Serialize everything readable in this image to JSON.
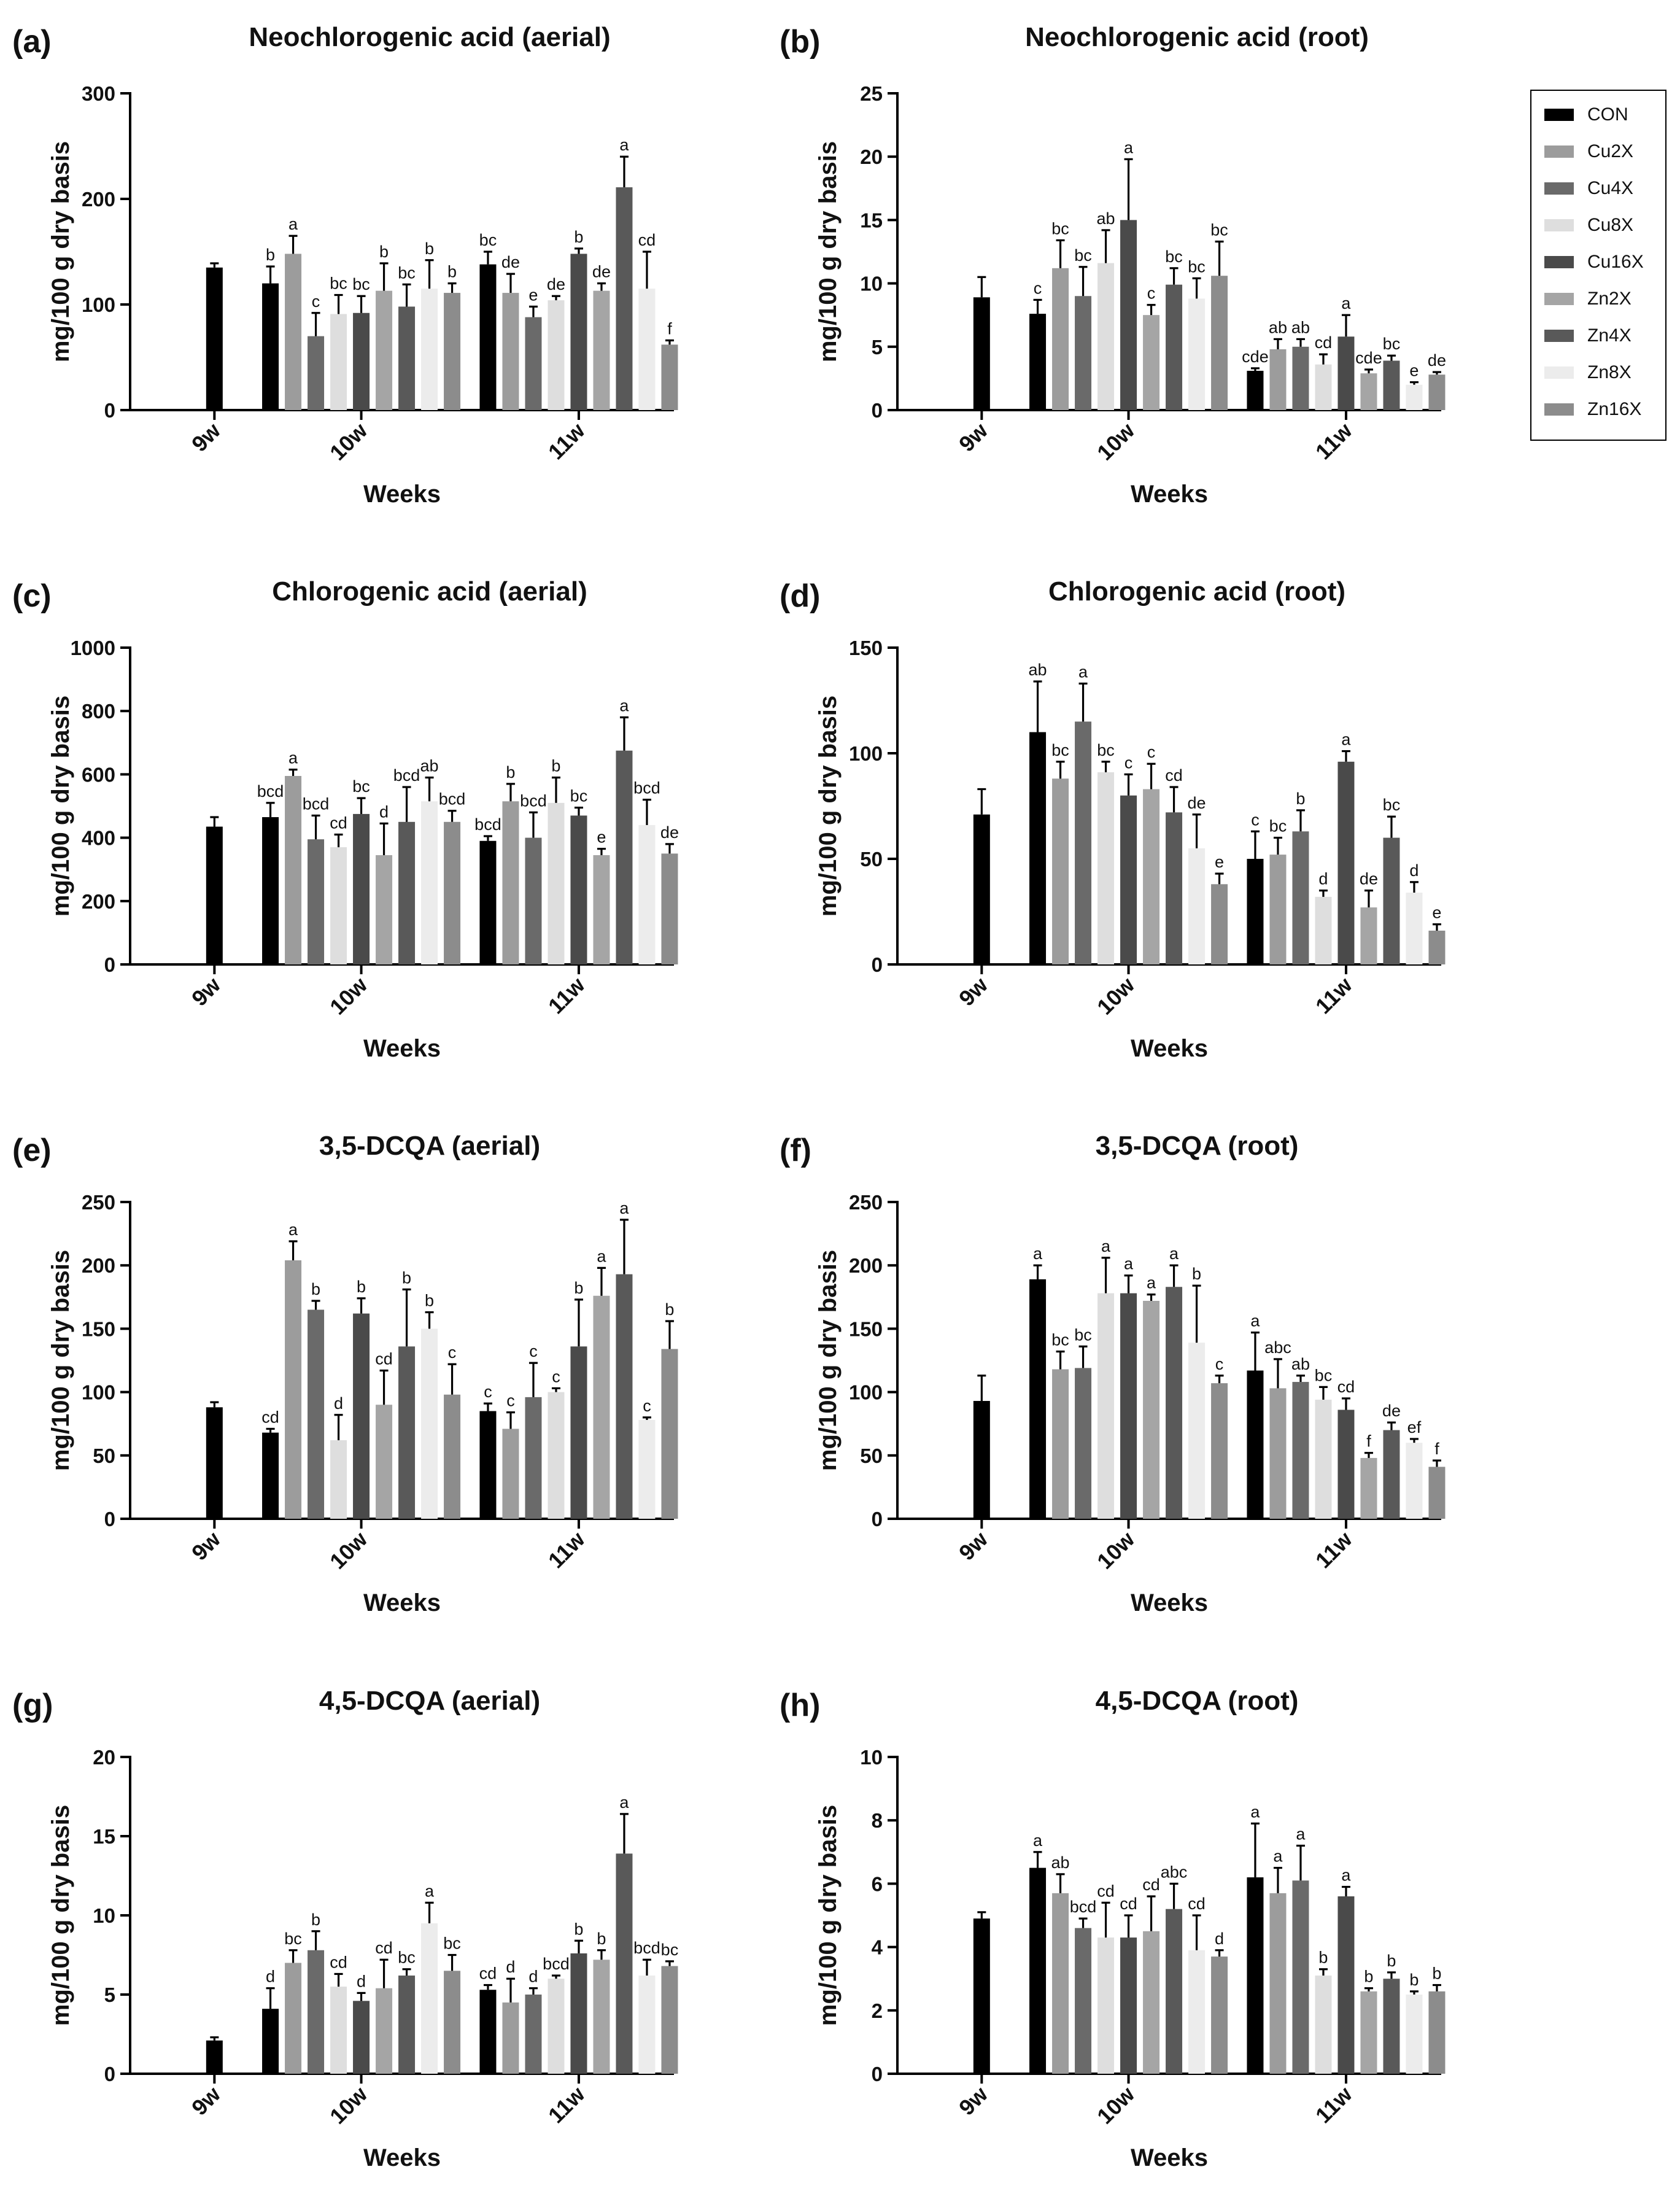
{
  "chart_data": [
    {
      "panel": "(a)",
      "type": "bar",
      "title": "Neochlorogenic acid (aerial)",
      "xlabel": "Weeks",
      "ylabel": "mg/100 g dry basis",
      "ylim": [
        0,
        300
      ],
      "yticks": [
        0,
        100,
        200,
        300
      ],
      "categories": [
        "9w",
        "10w",
        "11w"
      ],
      "groups": [
        {
          "category": "9w",
          "values": [
            135
          ],
          "errors": [
            4
          ],
          "labels": [
            ""
          ]
        },
        {
          "category": "10w",
          "values": [
            120,
            148,
            70,
            91,
            92,
            113,
            98,
            115,
            111
          ],
          "errors": [
            16,
            17,
            22,
            18,
            16,
            26,
            21,
            27,
            9
          ],
          "labels": [
            "b",
            "a",
            "c",
            "bc",
            "bc",
            "b",
            "bc",
            "b",
            "b"
          ]
        },
        {
          "category": "11w",
          "values": [
            138,
            111,
            88,
            104,
            148,
            113,
            211,
            115,
            62
          ],
          "errors": [
            12,
            18,
            10,
            4,
            5,
            7,
            29,
            35,
            4
          ],
          "labels": [
            "bc",
            "de",
            "e",
            "de",
            "b",
            "de",
            "a",
            "cd",
            "f"
          ]
        }
      ]
    },
    {
      "panel": "(b)",
      "type": "bar",
      "title": "Neochlorogenic acid (root)",
      "xlabel": "Weeks",
      "ylabel": "mg/100 g dry basis",
      "ylim": [
        0,
        25
      ],
      "yticks": [
        0,
        5,
        10,
        15,
        20,
        25
      ],
      "categories": [
        "9w",
        "10w",
        "11w"
      ],
      "groups": [
        {
          "category": "9w",
          "values": [
            8.9
          ],
          "errors": [
            1.6
          ],
          "labels": [
            ""
          ]
        },
        {
          "category": "10w",
          "values": [
            7.6,
            11.2,
            9.0,
            11.6,
            15.0,
            7.5,
            9.9,
            8.8,
            10.6
          ],
          "errors": [
            1.1,
            2.2,
            2.3,
            2.6,
            4.8,
            0.8,
            1.3,
            1.6,
            2.7
          ],
          "labels": [
            "c",
            "bc",
            "bc",
            "ab",
            "a",
            "c",
            "bc",
            "bc",
            "bc"
          ]
        },
        {
          "category": "11w",
          "values": [
            3.1,
            4.8,
            5.0,
            3.6,
            5.8,
            2.9,
            3.9,
            2.0,
            2.8
          ],
          "errors": [
            0.2,
            0.8,
            0.6,
            0.8,
            1.7,
            0.3,
            0.4,
            0.2,
            0.2
          ],
          "labels": [
            "cde",
            "ab",
            "ab",
            "cd",
            "a",
            "cde",
            "bc",
            "e",
            "de"
          ]
        }
      ]
    },
    {
      "panel": "(c)",
      "type": "bar",
      "title": "Chlorogenic acid (aerial)",
      "xlabel": "Weeks",
      "ylabel": "mg/100 g dry basis",
      "ylim": [
        0,
        1000
      ],
      "yticks": [
        0,
        200,
        400,
        600,
        800,
        1000
      ],
      "categories": [
        "9w",
        "10w",
        "11w"
      ],
      "groups": [
        {
          "category": "9w",
          "values": [
            435
          ],
          "errors": [
            30
          ],
          "labels": [
            ""
          ]
        },
        {
          "category": "10w",
          "values": [
            465,
            595,
            395,
            370,
            475,
            345,
            450,
            515,
            450
          ],
          "errors": [
            45,
            20,
            75,
            40,
            50,
            100,
            110,
            75,
            35
          ],
          "labels": [
            "bcd",
            "a",
            "bcd",
            "cd",
            "bc",
            "d",
            "bcd",
            "ab",
            "bcd"
          ]
        },
        {
          "category": "11w",
          "values": [
            390,
            515,
            400,
            510,
            470,
            345,
            675,
            440,
            350
          ],
          "errors": [
            15,
            55,
            80,
            80,
            25,
            20,
            105,
            80,
            30
          ],
          "labels": [
            "bcd",
            "b",
            "bcd",
            "b",
            "bc",
            "e",
            "a",
            "bcd",
            "de"
          ]
        }
      ]
    },
    {
      "panel": "(d)",
      "type": "bar",
      "title": "Chlorogenic acid (root)",
      "xlabel": "Weeks",
      "ylabel": "mg/100 g dry basis",
      "ylim": [
        0,
        150
      ],
      "yticks": [
        0,
        50,
        100,
        150
      ],
      "categories": [
        "9w",
        "10w",
        "11w"
      ],
      "groups": [
        {
          "category": "9w",
          "values": [
            71
          ],
          "errors": [
            12
          ],
          "labels": [
            ""
          ]
        },
        {
          "category": "10w",
          "values": [
            110,
            88,
            115,
            91,
            80,
            83,
            72,
            55,
            38
          ],
          "errors": [
            24,
            8,
            18,
            5,
            10,
            12,
            12,
            16,
            5
          ],
          "labels": [
            "ab",
            "bc",
            "a",
            "bc",
            "c",
            "c",
            "cd",
            "de",
            "e"
          ]
        },
        {
          "category": "11w",
          "values": [
            50,
            52,
            63,
            32,
            96,
            27,
            60,
            34,
            16
          ],
          "errors": [
            13,
            8,
            10,
            3,
            5,
            8,
            10,
            5,
            3
          ],
          "labels": [
            "c",
            "bc",
            "b",
            "d",
            "a",
            "de",
            "bc",
            "d",
            "e"
          ]
        }
      ]
    },
    {
      "panel": "(e)",
      "type": "bar",
      "title": "3,5-DCQA (aerial)",
      "xlabel": "Weeks",
      "ylabel": "mg/100 g dry basis",
      "ylim": [
        0,
        250
      ],
      "yticks": [
        0,
        50,
        100,
        150,
        200,
        250
      ],
      "categories": [
        "9w",
        "10w",
        "11w"
      ],
      "groups": [
        {
          "category": "9w",
          "values": [
            88
          ],
          "errors": [
            4
          ],
          "labels": [
            ""
          ]
        },
        {
          "category": "10w",
          "values": [
            68,
            204,
            165,
            62,
            162,
            90,
            136,
            150,
            98
          ],
          "errors": [
            3,
            15,
            7,
            20,
            12,
            27,
            45,
            13,
            24
          ],
          "labels": [
            "cd",
            "a",
            "b",
            "d",
            "b",
            "cd",
            "b",
            "b",
            "c"
          ]
        },
        {
          "category": "11w",
          "values": [
            85,
            71,
            96,
            100,
            136,
            176,
            193,
            78,
            134
          ],
          "errors": [
            6,
            13,
            27,
            3,
            37,
            22,
            43,
            2,
            22
          ],
          "labels": [
            "c",
            "c",
            "c",
            "c",
            "b",
            "a",
            "a",
            "c",
            "b"
          ]
        }
      ]
    },
    {
      "panel": "(f)",
      "type": "bar",
      "title": "3,5-DCQA (root)",
      "xlabel": "Weeks",
      "ylabel": "mg/100 g dry basis",
      "ylim": [
        0,
        250
      ],
      "yticks": [
        0,
        50,
        100,
        150,
        200,
        250
      ],
      "categories": [
        "9w",
        "10w",
        "11w"
      ],
      "groups": [
        {
          "category": "9w",
          "values": [
            93
          ],
          "errors": [
            20
          ],
          "labels": [
            ""
          ]
        },
        {
          "category": "10w",
          "values": [
            189,
            118,
            119,
            178,
            178,
            172,
            183,
            139,
            107
          ],
          "errors": [
            11,
            14,
            17,
            28,
            14,
            5,
            17,
            45,
            6
          ],
          "labels": [
            "a",
            "bc",
            "bc",
            "a",
            "a",
            "a",
            "a",
            "b",
            "c"
          ]
        },
        {
          "category": "11w",
          "values": [
            117,
            103,
            108,
            94,
            86,
            48,
            70,
            60,
            41
          ],
          "errors": [
            30,
            23,
            5,
            10,
            9,
            4,
            6,
            3,
            5
          ],
          "labels": [
            "a",
            "abc",
            "ab",
            "bc",
            "cd",
            "f",
            "de",
            "ef",
            "f"
          ]
        }
      ]
    },
    {
      "panel": "(g)",
      "type": "bar",
      "title": "4,5-DCQA (aerial)",
      "xlabel": "Weeks",
      "ylabel": "mg/100 g dry basis",
      "ylim": [
        0,
        20
      ],
      "yticks": [
        0,
        5,
        10,
        15,
        20
      ],
      "categories": [
        "9w",
        "10w",
        "11w"
      ],
      "groups": [
        {
          "category": "9w",
          "values": [
            2.1
          ],
          "errors": [
            0.2
          ],
          "labels": [
            ""
          ]
        },
        {
          "category": "10w",
          "values": [
            4.1,
            7.0,
            7.8,
            5.5,
            4.6,
            5.4,
            6.2,
            9.5,
            6.5
          ],
          "errors": [
            1.3,
            0.8,
            1.2,
            0.8,
            0.5,
            1.8,
            0.4,
            1.3,
            1.0
          ],
          "labels": [
            "d",
            "bc",
            "b",
            "cd",
            "d",
            "cd",
            "bc",
            "a",
            "bc"
          ]
        },
        {
          "category": "11w",
          "values": [
            5.3,
            4.5,
            5.0,
            6.0,
            7.6,
            7.2,
            13.9,
            6.2,
            6.8
          ],
          "errors": [
            0.3,
            1.5,
            0.4,
            0.2,
            0.8,
            0.6,
            2.5,
            1.0,
            0.3
          ],
          "labels": [
            "cd",
            "d",
            "d",
            "bcd",
            "b",
            "b",
            "a",
            "bcd",
            "bc"
          ]
        }
      ]
    },
    {
      "panel": "(h)",
      "type": "bar",
      "title": "4,5-DCQA (root)",
      "xlabel": "Weeks",
      "ylabel": "mg/100 g dry basis",
      "ylim": [
        0,
        10
      ],
      "yticks": [
        0,
        2,
        4,
        6,
        8,
        10
      ],
      "categories": [
        "9w",
        "10w",
        "11w"
      ],
      "groups": [
        {
          "category": "9w",
          "values": [
            4.9
          ],
          "errors": [
            0.2
          ],
          "labels": [
            ""
          ]
        },
        {
          "category": "10w",
          "values": [
            6.5,
            5.7,
            4.6,
            4.3,
            4.3,
            4.5,
            5.2,
            3.9,
            3.7
          ],
          "errors": [
            0.5,
            0.6,
            0.3,
            1.1,
            0.7,
            1.1,
            0.8,
            1.1,
            0.2
          ],
          "labels": [
            "a",
            "ab",
            "bcd",
            "cd",
            "cd",
            "cd",
            "abc",
            "cd",
            "d"
          ]
        },
        {
          "category": "11w",
          "values": [
            6.2,
            5.7,
            6.1,
            3.1,
            5.6,
            2.6,
            3.0,
            2.5,
            2.6
          ],
          "errors": [
            1.7,
            0.8,
            1.1,
            0.2,
            0.3,
            0.1,
            0.2,
            0.1,
            0.2
          ],
          "labels": [
            "a",
            "a",
            "a",
            "b",
            "a",
            "b",
            "b",
            "b",
            "b"
          ]
        }
      ]
    }
  ],
  "legend": {
    "position": "top-right",
    "items": [
      {
        "label": "CON",
        "color": "#000000"
      },
      {
        "label": "Cu2X",
        "color": "#9c9c9c"
      },
      {
        "label": "Cu4X",
        "color": "#6a6a6a"
      },
      {
        "label": "Cu8X",
        "color": "#dedede"
      },
      {
        "label": "Cu16X",
        "color": "#4a4a4a"
      },
      {
        "label": "Zn2X",
        "color": "#a5a5a5"
      },
      {
        "label": "Zn4X",
        "color": "#595959"
      },
      {
        "label": "Zn8X",
        "color": "#ececec"
      },
      {
        "label": "Zn16X",
        "color": "#8c8c8c"
      }
    ]
  }
}
